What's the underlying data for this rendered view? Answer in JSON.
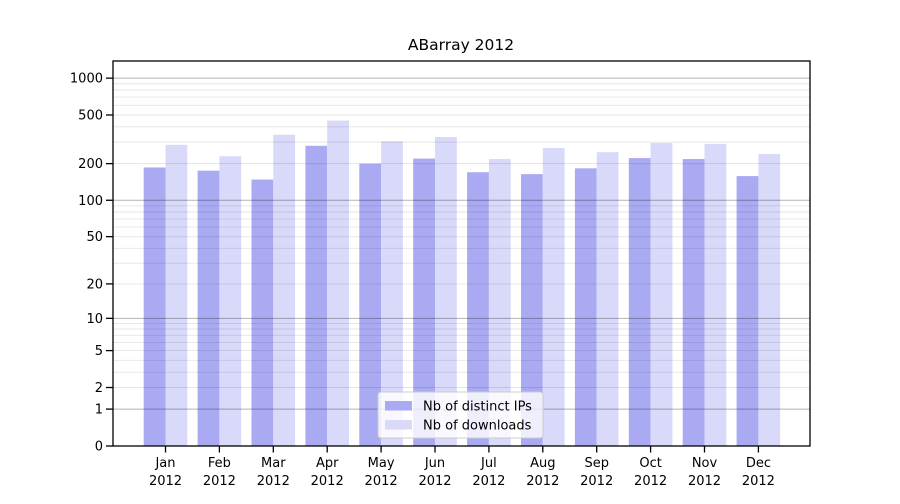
{
  "figure": {
    "title": "ABarray 2012"
  },
  "chart_data": {
    "type": "bar",
    "title": "ABarray 2012",
    "categories": [
      "Jan 2012",
      "Feb 2012",
      "Mar 2012",
      "Apr 2012",
      "May 2012",
      "Jun 2012",
      "Jul 2012",
      "Aug 2012",
      "Sep 2012",
      "Oct 2012",
      "Nov 2012",
      "Dec 2012"
    ],
    "series": [
      {
        "name": "Nb of distinct IPs",
        "color": "#aaaaf2",
        "values": [
          186,
          175,
          148,
          280,
          200,
          220,
          170,
          164,
          183,
          222,
          218,
          158
        ]
      },
      {
        "name": "Nb of downloads",
        "color": "#d9d9f9",
        "values": [
          285,
          230,
          345,
          450,
          305,
          330,
          218,
          268,
          248,
          295,
          290,
          240
        ]
      }
    ],
    "xlabel": "",
    "ylabel": "",
    "yscale": "log10(1+v)",
    "yticks": [
      0,
      1,
      2,
      5,
      10,
      20,
      50,
      100,
      200,
      500,
      1000
    ],
    "ylim": [
      0,
      1380
    ],
    "grid": {
      "major": [
        1,
        10,
        100,
        1000
      ],
      "minor_mantissas": [
        2,
        3,
        4,
        5,
        6,
        7,
        8,
        9
      ]
    },
    "legend": {
      "entries": [
        "Nb of distinct IPs",
        "Nb of downloads"
      ],
      "position": "bottom-center"
    }
  },
  "colors": {
    "axis": "#000000",
    "text": "#000000",
    "grid_major": "rgba(0,0,0,0.30)",
    "grid_minor": "rgba(0,0,0,0.10)",
    "legend_bg": "rgba(255,255,255,0.8)",
    "legend_border": "#cccccc"
  }
}
